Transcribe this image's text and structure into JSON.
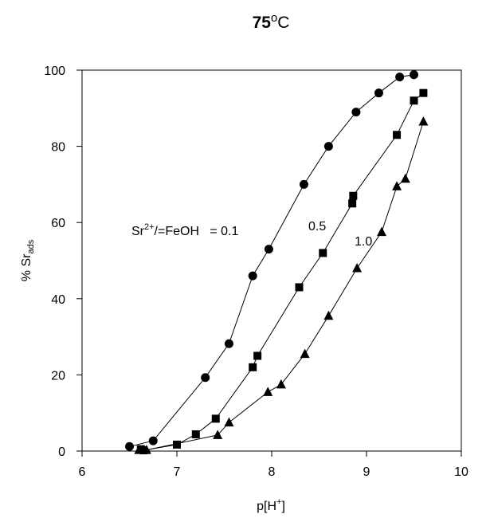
{
  "chart_data": {
    "type": "scatter",
    "title": {
      "main": "75",
      "superscript": "o",
      "suffix": "C"
    },
    "xlabel": {
      "main": "p[H",
      "superscript": "+",
      "suffix": "]"
    },
    "ylabel": {
      "main": "% Sr",
      "subscript": "ads"
    },
    "xlim": [
      6,
      10
    ],
    "ylim": [
      0,
      100
    ],
    "xticks": [
      6,
      7,
      8,
      9,
      10
    ],
    "yticks": [
      0,
      20,
      40,
      60,
      80,
      100
    ],
    "grid": false,
    "line_color": "#000000",
    "marker_color": "#000000",
    "series": [
      {
        "label": "0.1",
        "marker": "circle",
        "x": [
          6.5,
          6.75,
          7.3,
          7.55,
          7.8,
          7.97,
          8.34,
          8.6,
          8.89,
          9.13,
          9.35,
          9.5
        ],
        "y": [
          1.2,
          2.7,
          19.3,
          28.2,
          46,
          53,
          70,
          80,
          89,
          94,
          98.2,
          98.8
        ]
      },
      {
        "label": "0.5",
        "marker": "square",
        "x": [
          6.62,
          6.65,
          7.0,
          7.2,
          7.41,
          7.8,
          7.85,
          8.29,
          8.54,
          8.85,
          8.86,
          9.32,
          9.5,
          9.6
        ],
        "y": [
          0.5,
          0.2,
          1.7,
          4.4,
          8.5,
          22,
          25,
          43,
          52,
          65,
          67,
          83,
          92,
          94
        ]
      },
      {
        "label": "1.0",
        "marker": "triangle",
        "x": [
          6.6,
          6.68,
          7.43,
          7.55,
          7.96,
          8.1,
          8.35,
          8.6,
          8.9,
          9.16,
          9.32,
          9.41,
          9.6
        ],
        "y": [
          0.3,
          0.3,
          4.2,
          7.5,
          15.5,
          17.5,
          25.5,
          35.5,
          48,
          57.5,
          69.5,
          71.5,
          86.5
        ]
      }
    ],
    "annotations": {
      "ratio_label": {
        "prefix": "Sr",
        "superscript": "2+",
        "suffix": "/=FeOH   = 0.1"
      },
      "label_05": "0.5",
      "label_10": "1.0"
    }
  }
}
